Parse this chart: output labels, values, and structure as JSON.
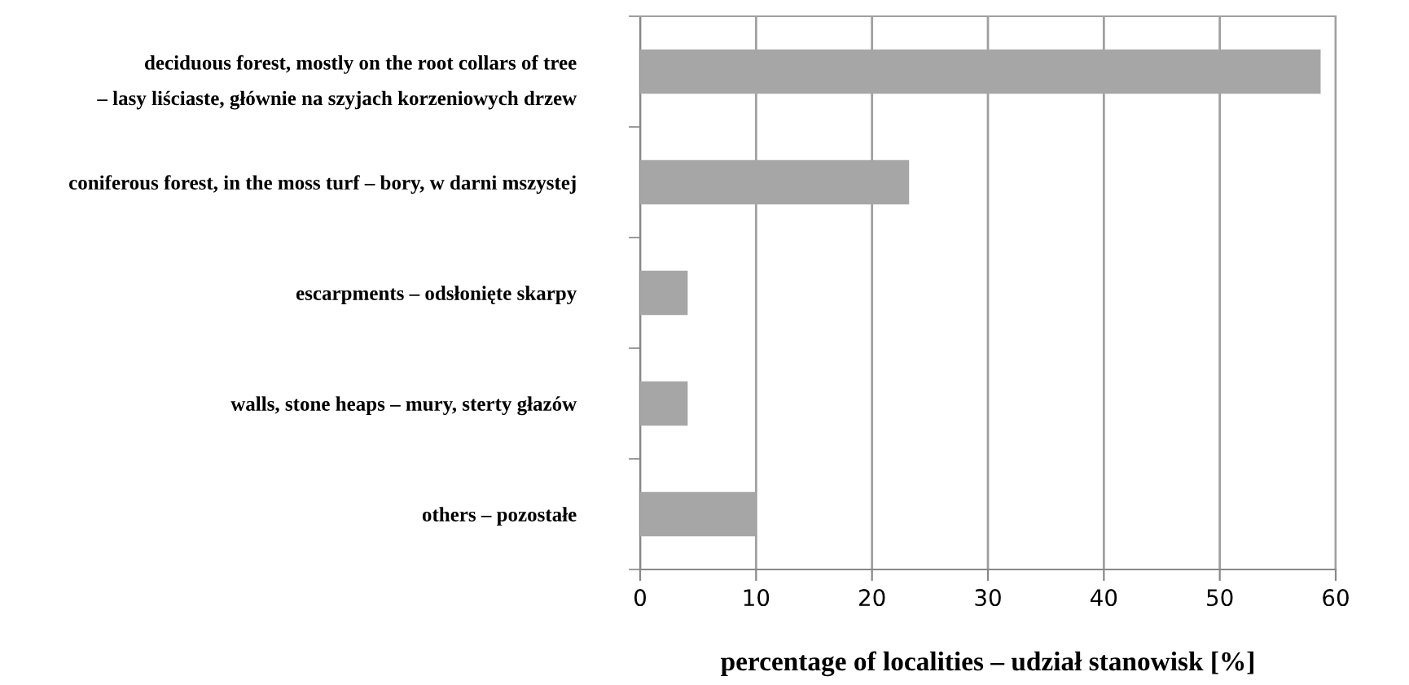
{
  "chart_data": {
    "type": "bar",
    "orientation": "horizontal",
    "categories": [
      "deciduous forest, mostly on the root collars of tree\n– lasy liściaste, głównie na szyjach korzeniowych drzew",
      "coniferous forest, in the moss turf – bory, w darni mszystej",
      "escarpments – odsłonięte skarpy",
      "walls, stone heaps – mury, sterty głazów",
      "others – pozostałe"
    ],
    "values": [
      58.7,
      23.2,
      4.1,
      4.1,
      10
    ],
    "color": "#a6a6a6",
    "xlabel": "percentage of localities – udział stanowisk [%]",
    "xlim": [
      0,
      60
    ],
    "xticks": [
      0,
      10,
      20,
      30,
      40,
      50,
      60
    ],
    "grid": "x",
    "legend": false
  }
}
